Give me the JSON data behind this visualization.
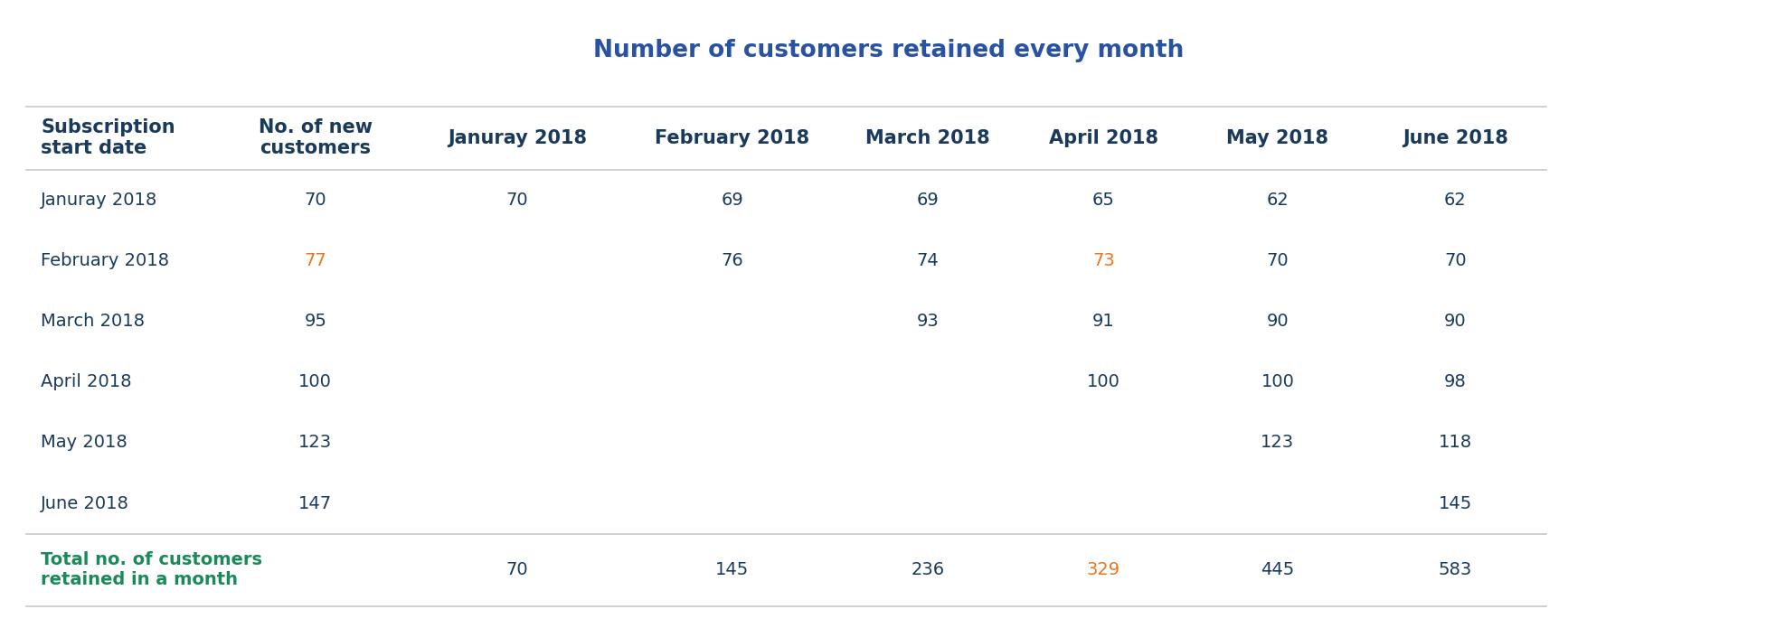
{
  "title": "Number of customers retained every month",
  "title_color": "#2952a3",
  "background_color": "#ffffff",
  "col_headers": [
    "Subscription\nstart date",
    "No. of new\ncustomers",
    "Januray 2018",
    "February 2018",
    "March 2018",
    "April 2018",
    "May 2018",
    "June 2018"
  ],
  "col_header_color": "#1a3a5c",
  "row_labels": [
    "Januray 2018",
    "February 2018",
    "March 2018",
    "April 2018",
    "May 2018",
    "June 2018"
  ],
  "new_customers": [
    "70",
    "77",
    "95",
    "100",
    "123",
    "147"
  ],
  "new_customers_colors": [
    "#1a3a5c",
    "#e87722",
    "#1a3a5c",
    "#1a3a5c",
    "#1a3a5c",
    "#1a3a5c"
  ],
  "table_data": [
    [
      "70",
      "69",
      "69",
      "65",
      "62",
      "62"
    ],
    [
      "",
      "76",
      "74",
      "73",
      "70",
      "70"
    ],
    [
      "",
      "",
      "93",
      "91",
      "90",
      "90"
    ],
    [
      "",
      "",
      "",
      "100",
      "100",
      "98"
    ],
    [
      "",
      "",
      "",
      "",
      "123",
      "118"
    ],
    [
      "",
      "",
      "",
      "",
      "",
      "145"
    ]
  ],
  "cell_colors": [
    [
      "#1a3a5c",
      "#1a3a5c",
      "#1a3a5c",
      "#1a3a5c",
      "#1a3a5c",
      "#1a3a5c"
    ],
    [
      "#1a3a5c",
      "#1a3a5c",
      "#1a3a5c",
      "#e87722",
      "#1a3a5c",
      "#1a3a5c"
    ],
    [
      "#1a3a5c",
      "#1a3a5c",
      "#1a3a5c",
      "#1a3a5c",
      "#1a3a5c",
      "#1a3a5c"
    ],
    [
      "#1a3a5c",
      "#1a3a5c",
      "#1a3a5c",
      "#1a3a5c",
      "#1a3a5c",
      "#1a3a5c"
    ],
    [
      "#1a3a5c",
      "#1a3a5c",
      "#1a3a5c",
      "#1a3a5c",
      "#1a3a5c",
      "#1a3a5c"
    ],
    [
      "#1a3a5c",
      "#1a3a5c",
      "#1a3a5c",
      "#1a3a5c",
      "#1a3a5c",
      "#1a3a5c"
    ]
  ],
  "totals": [
    "70",
    "145",
    "236",
    "329",
    "445",
    "583"
  ],
  "totals_colors": [
    "#1a3a5c",
    "#1a3a5c",
    "#1a3a5c",
    "#e87722",
    "#1a3a5c",
    "#1a3a5c"
  ],
  "total_label": "Total no. of customers\nretained in a month",
  "total_label_color": "#1a8a5a",
  "row_label_color": "#1a3a5c",
  "divider_color": "#c8c8c8",
  "header_font_size": 15,
  "cell_font_size": 14,
  "title_font_size": 19
}
